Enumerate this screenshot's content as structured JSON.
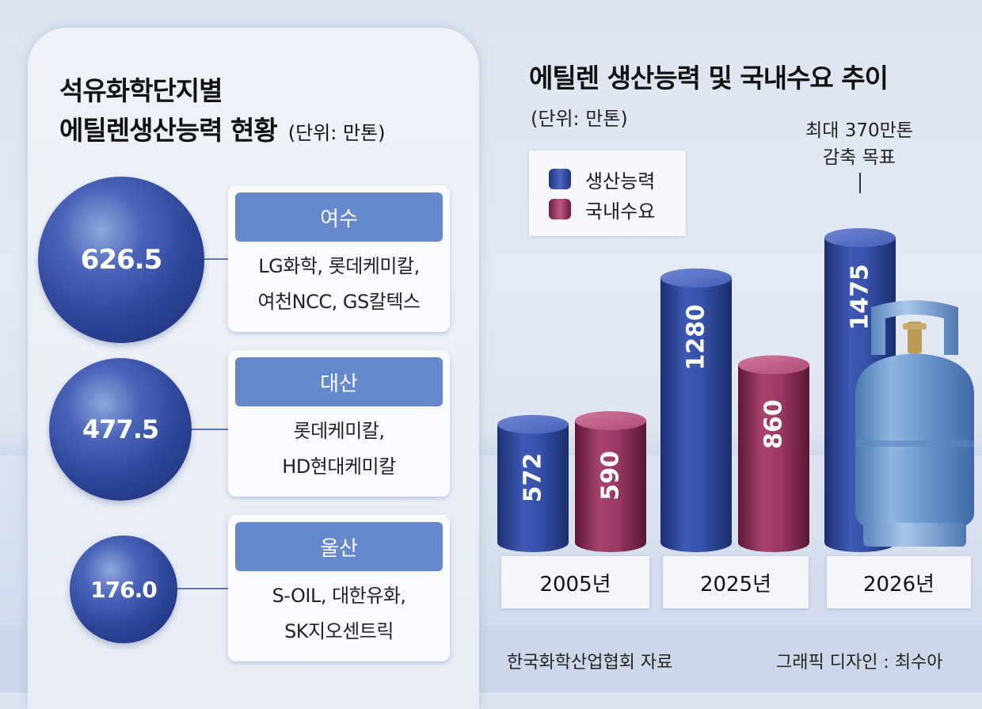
{
  "left": {
    "title_line1": "석유화학단지별",
    "title_line2": "에틸렌생산능력 현황",
    "unit": "(단위: 만톤)",
    "complexes": [
      {
        "value": "626.5",
        "region": "여수",
        "companies_line1": "LG화학, 롯데케미칼,",
        "companies_line2": "여천NCC, GS칼텍스"
      },
      {
        "value": "477.5",
        "region": "대산",
        "companies_line1": "롯데케미칼,",
        "companies_line2": "HD현대케미칼"
      },
      {
        "value": "176.0",
        "region": "울산",
        "companies_line1": "S-OIL, 대한유화,",
        "companies_line2": "SK지오센트릭"
      }
    ]
  },
  "chart_data": {
    "type": "bar",
    "title": "에틸렌 생산능력 및 국내수요 추이",
    "unit": "(단위: 만톤)",
    "categories": [
      "2005년",
      "2025년",
      "2026년"
    ],
    "series": [
      {
        "name": "생산능력",
        "values": [
          572,
          1280,
          1475
        ],
        "color": "#2f4a9e"
      },
      {
        "name": "국내수요",
        "values": [
          590,
          860,
          null
        ],
        "color": "#9a3460"
      }
    ],
    "ylim": [
      0,
      1600
    ],
    "legend_position": "top-left",
    "annotation": {
      "line1": "최대 370만톤",
      "line2": "감축 목표",
      "target_category": "2026년"
    }
  },
  "footer": {
    "source": "한국화학산업협회 자료",
    "credit": "그래픽 디자인 : 최수아"
  },
  "colors": {
    "card_header": "#6688cc",
    "sphere": "#2b4597",
    "capacity": "#2f4a9e",
    "demand": "#9a3460"
  }
}
